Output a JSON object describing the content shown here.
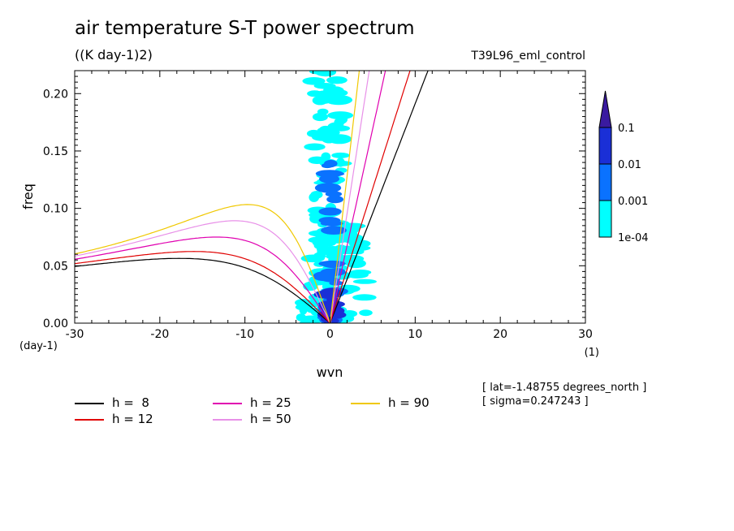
{
  "header": {
    "title": "air temperature S-T power spectrum",
    "units": "((K day-1)2)",
    "experiment": "T39L96_eml_control"
  },
  "info": {
    "lat": "[ lat=-1.48755 degrees_north ]",
    "sigma": "[ sigma=0.247243 ]"
  },
  "colors": {
    "h8": "#000000",
    "h12": "#e00000",
    "h25": "#e000b0",
    "h50": "#e890e8",
    "h90": "#f0c800",
    "level_1e-04": "#00ffff",
    "level_0.001": "#0a72ff",
    "level_0.01": "#1a2fd6",
    "level_0.1": "#3a1aa0"
  },
  "chart_data": {
    "type": "heatmap",
    "title": "air temperature S-T power spectrum",
    "xlabel": "wvn",
    "ylabel": "freq",
    "xunit": "(1)",
    "yunit": "(day-1)",
    "xlim": [
      -30,
      30
    ],
    "ylim": [
      0,
      0.22
    ],
    "x_ticks": [
      -30,
      -20,
      -10,
      0,
      10,
      20,
      30
    ],
    "x_tick_labels": [
      "-30",
      "-20",
      "-10",
      "0",
      "10",
      "20",
      "30"
    ],
    "y_ticks": [
      0,
      0.05,
      0.1,
      0.15,
      0.2
    ],
    "y_tick_labels": [
      "0.00",
      "0.05",
      "0.10",
      "0.15",
      "0.20"
    ],
    "colorbar": {
      "levels": [
        "1e-04",
        "0.001",
        "0.01",
        "0.1"
      ],
      "extend": "max"
    },
    "power_regions": [
      {
        "level": "1e-04",
        "wvn": [
          -2,
          1.5
        ],
        "freq": [
          0.0,
          0.22
        ]
      },
      {
        "level": "1e-04",
        "wvn": [
          -4,
          6
        ],
        "freq": [
          0.0,
          0.09
        ]
      },
      {
        "level": "0.001",
        "wvn": [
          -0.8,
          0.8
        ],
        "freq": [
          0.0,
          0.06
        ]
      },
      {
        "level": "0.001",
        "wvn": [
          -0.4,
          0.6
        ],
        "freq": [
          0.08,
          0.14
        ]
      },
      {
        "level": "0.01",
        "wvn": [
          -0.4,
          0.4
        ],
        "freq": [
          0.0,
          0.03
        ]
      }
    ],
    "series": [
      {
        "name": "h =  8",
        "h": 8,
        "color": "h8"
      },
      {
        "name": "h = 12",
        "h": 12,
        "color": "h12"
      },
      {
        "name": "h = 25",
        "h": 25,
        "color": "h25"
      },
      {
        "name": "h = 50",
        "h": 50,
        "color": "h50"
      },
      {
        "name": "h = 90",
        "h": 90,
        "color": "h90"
      }
    ]
  }
}
